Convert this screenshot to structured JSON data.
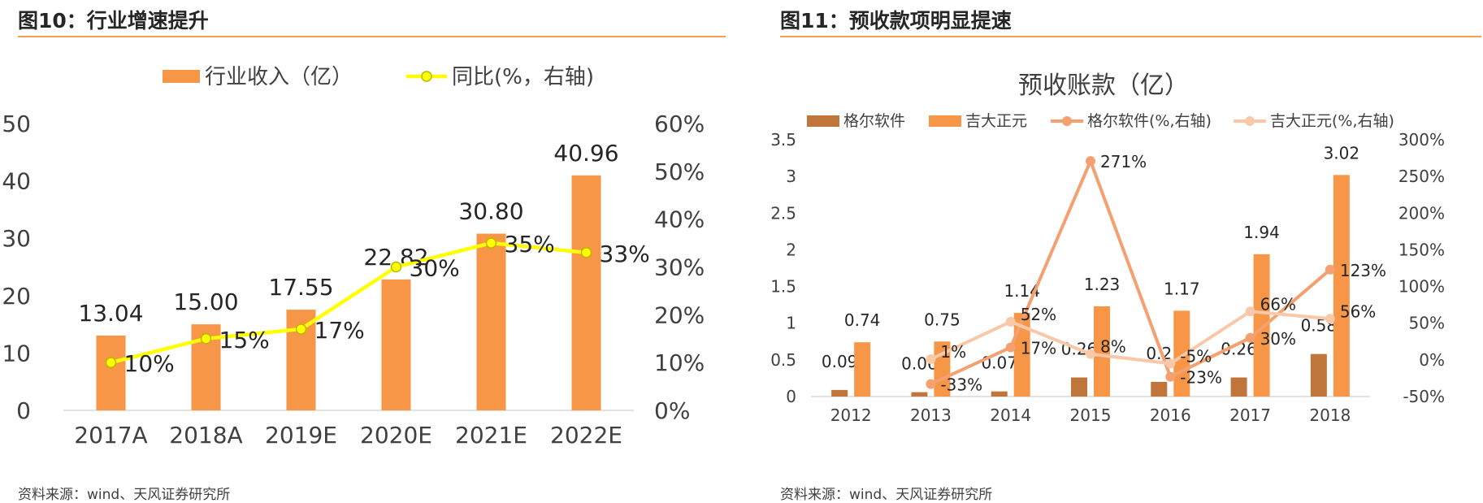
{
  "page": {
    "source_left": "资料来源：wind、天风证券研究所",
    "source_right": "资料来源：wind、天风证券研究所"
  },
  "colors": {
    "bar_orange": "#f79646",
    "line_yellow": "#ffff00",
    "rule": "#f0a050",
    "bar_brown": "#c0763a",
    "line_orange": "#f4a070",
    "line_peach": "#f8c8a8"
  },
  "chart_data": [
    {
      "type": "bar",
      "heading": "图10：行业增速提升",
      "title": "",
      "categories": [
        "2017A",
        "2018A",
        "2019E",
        "2020E",
        "2021E",
        "2022E"
      ],
      "series": [
        {
          "name": "行业收入（亿）",
          "type": "bar",
          "axis": "left",
          "values": [
            13.04,
            15.0,
            17.55,
            22.82,
            30.8,
            40.96
          ],
          "labels": [
            "13.04",
            "15.00",
            "17.55",
            "22.82",
            "30.80",
            "40.96"
          ]
        },
        {
          "name": "同比(%，右轴)",
          "type": "line",
          "axis": "right",
          "values": [
            10,
            15,
            17,
            30,
            35,
            33
          ],
          "labels": [
            "10%",
            "15%",
            "17%",
            "30%",
            "35%",
            "33%"
          ]
        }
      ],
      "ylim": [
        0,
        50
      ],
      "yticks": [
        "0",
        "10",
        "20",
        "30",
        "40",
        "50"
      ],
      "y2lim": [
        0,
        60
      ],
      "y2ticks": [
        "0%",
        "10%",
        "20%",
        "30%",
        "40%",
        "50%",
        "60%"
      ],
      "legend": "top-center",
      "grid": false
    },
    {
      "type": "bar",
      "heading": "图11：预收款项明显提速",
      "title": "预收账款（亿）",
      "categories": [
        "2012",
        "2013",
        "2014",
        "2015",
        "2016",
        "2017",
        "2018"
      ],
      "series": [
        {
          "name": "格尔软件",
          "type": "bar",
          "axis": "left",
          "values": [
            0.09,
            0.06,
            0.07,
            0.26,
            0.2,
            0.26,
            0.58
          ],
          "labels": [
            "0.09",
            "0.06",
            "0.07",
            "0.26",
            "0.2",
            "0.26",
            "0.58"
          ]
        },
        {
          "name": "吉大正元",
          "type": "bar",
          "axis": "left",
          "values": [
            0.74,
            0.75,
            1.14,
            1.23,
            1.17,
            1.94,
            3.02
          ],
          "labels": [
            "0.74",
            "0.75",
            "1.14",
            "1.23",
            "1.17",
            "1.94",
            "3.02"
          ]
        },
        {
          "name": "格尔软件(%,右轴)",
          "type": "line",
          "axis": "right",
          "values": [
            null,
            -33,
            17,
            271,
            -23,
            30,
            123
          ],
          "labels": [
            "",
            "-33%",
            "17%",
            "271%",
            "-23%",
            "30%",
            "123%"
          ]
        },
        {
          "name": "吉大正元(%,右轴)",
          "type": "line",
          "axis": "right",
          "values": [
            null,
            1,
            52,
            8,
            -5,
            66,
            56
          ],
          "labels": [
            "",
            "1%",
            "52%",
            "8%",
            "-5%",
            "66%",
            "56%"
          ]
        }
      ],
      "ylim": [
        0,
        3.5
      ],
      "yticks": [
        "0",
        "0.5",
        "1",
        "1.5",
        "2",
        "2.5",
        "3",
        "3.5"
      ],
      "y2lim": [
        -50,
        300
      ],
      "y2ticks": [
        "-50%",
        "0%",
        "50%",
        "100%",
        "150%",
        "200%",
        "250%",
        "300%"
      ],
      "legend": "top",
      "grid": false
    }
  ]
}
